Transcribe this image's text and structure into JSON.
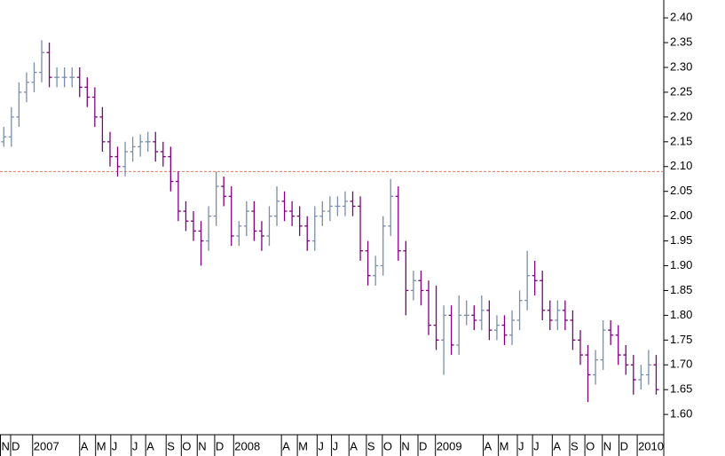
{
  "chart_data": {
    "type": "ohlc",
    "x": [
      0,
      1,
      2,
      3,
      4,
      5,
      6,
      7,
      8,
      9,
      10,
      11,
      12,
      13,
      14,
      15,
      16,
      17,
      18,
      19,
      20,
      21,
      22,
      23,
      24,
      25,
      26,
      27,
      28,
      29,
      30,
      31,
      32,
      33,
      34,
      35,
      36,
      37,
      38,
      39,
      40,
      41,
      42,
      43,
      44,
      45,
      46,
      47,
      48,
      49,
      50,
      51,
      52,
      53,
      54,
      55,
      56,
      57,
      58,
      59,
      60,
      61,
      62,
      63,
      64,
      65,
      66,
      67,
      68,
      69,
      70,
      71,
      72,
      73,
      74,
      75,
      76,
      77,
      78,
      79,
      80,
      81,
      82,
      83,
      84,
      85,
      86
    ],
    "open": [
      2.15,
      2.16,
      2.2,
      2.25,
      2.27,
      2.29,
      2.33,
      2.28,
      2.28,
      2.28,
      2.28,
      2.26,
      2.24,
      2.2,
      2.15,
      2.12,
      2.1,
      2.13,
      2.14,
      2.15,
      2.15,
      2.13,
      2.12,
      2.07,
      2.01,
      1.99,
      1.97,
      1.95,
      2.0,
      2.06,
      2.04,
      1.96,
      1.98,
      2.01,
      1.97,
      1.96,
      2.0,
      2.03,
      2.01,
      2.0,
      1.98,
      1.95,
      2.0,
      2.01,
      2.02,
      2.02,
      2.03,
      2.02,
      1.93,
      1.88,
      1.9,
      1.98,
      2.04,
      1.93,
      1.85,
      1.87,
      1.85,
      1.78,
      1.75,
      1.8,
      1.74,
      1.8,
      1.8,
      1.79,
      1.81,
      1.77,
      1.78,
      1.76,
      1.79,
      1.83,
      1.88,
      1.87,
      1.81,
      1.79,
      1.81,
      1.79,
      1.75,
      1.72,
      1.68,
      1.71,
      1.77,
      1.76,
      1.72,
      1.7,
      1.67,
      1.68,
      1.7
    ],
    "high": [
      2.18,
      2.22,
      2.27,
      2.29,
      2.31,
      2.355,
      2.35,
      2.3,
      2.3,
      2.3,
      2.3,
      2.28,
      2.26,
      2.22,
      2.17,
      2.14,
      2.15,
      2.16,
      2.165,
      2.17,
      2.17,
      2.15,
      2.14,
      2.09,
      2.03,
      2.01,
      1.99,
      2.02,
      2.09,
      2.08,
      2.06,
      1.99,
      2.03,
      2.03,
      1.99,
      2.02,
      2.06,
      2.05,
      2.03,
      2.02,
      2.0,
      2.02,
      2.03,
      2.04,
      2.04,
      2.05,
      2.05,
      2.04,
      1.95,
      1.92,
      2.0,
      2.075,
      2.06,
      1.95,
      1.89,
      1.89,
      1.87,
      1.86,
      1.82,
      1.82,
      1.84,
      1.83,
      1.82,
      1.84,
      1.83,
      1.8,
      1.8,
      1.81,
      1.85,
      1.93,
      1.91,
      1.89,
      1.83,
      1.83,
      1.83,
      1.81,
      1.77,
      1.74,
      1.73,
      1.79,
      1.79,
      1.78,
      1.74,
      1.72,
      1.7,
      1.73,
      1.72
    ],
    "low": [
      2.14,
      2.14,
      2.18,
      2.23,
      2.25,
      2.27,
      2.26,
      2.26,
      2.26,
      2.26,
      2.24,
      2.22,
      2.18,
      2.13,
      2.1,
      2.08,
      2.08,
      2.11,
      2.12,
      2.13,
      2.11,
      2.1,
      2.05,
      1.99,
      1.97,
      1.95,
      1.9,
      1.93,
      1.98,
      2.02,
      1.94,
      1.94,
      1.96,
      1.95,
      1.93,
      1.94,
      1.98,
      1.99,
      1.98,
      1.96,
      1.93,
      1.93,
      1.98,
      1.99,
      2.0,
      2.0,
      2.0,
      1.91,
      1.86,
      1.86,
      1.88,
      1.96,
      1.91,
      1.8,
      1.83,
      1.82,
      1.76,
      1.73,
      1.68,
      1.72,
      1.72,
      1.78,
      1.77,
      1.77,
      1.75,
      1.75,
      1.74,
      1.74,
      1.77,
      1.81,
      1.84,
      1.79,
      1.77,
      1.77,
      1.77,
      1.73,
      1.7,
      1.625,
      1.66,
      1.69,
      1.74,
      1.7,
      1.68,
      1.64,
      1.65,
      1.66,
      1.64
    ],
    "close": [
      2.16,
      2.2,
      2.25,
      2.27,
      2.29,
      2.33,
      2.28,
      2.28,
      2.28,
      2.28,
      2.26,
      2.24,
      2.2,
      2.15,
      2.12,
      2.1,
      2.13,
      2.14,
      2.15,
      2.15,
      2.13,
      2.12,
      2.07,
      2.01,
      1.99,
      1.97,
      1.95,
      2.0,
      2.06,
      2.04,
      1.96,
      1.98,
      2.01,
      1.97,
      1.96,
      2.0,
      2.03,
      2.01,
      2.0,
      1.98,
      1.95,
      2.0,
      2.01,
      2.02,
      2.02,
      2.03,
      2.02,
      1.93,
      1.88,
      1.9,
      1.98,
      2.04,
      1.93,
      1.85,
      1.87,
      1.85,
      1.78,
      1.75,
      1.8,
      1.74,
      1.8,
      1.8,
      1.79,
      1.81,
      1.77,
      1.78,
      1.76,
      1.79,
      1.83,
      1.88,
      1.87,
      1.81,
      1.79,
      1.81,
      1.79,
      1.75,
      1.72,
      1.68,
      1.71,
      1.77,
      1.76,
      1.72,
      1.7,
      1.67,
      1.68,
      1.7,
      1.65
    ],
    "up_color": "#7b8ea8",
    "down_color": "#800080",
    "reference_line": 2.09,
    "reference_color": "#e07a5f",
    "xlim": [
      -0.5,
      87
    ],
    "xticks": [
      {
        "value": -0.5,
        "label": "N"
      },
      {
        "value": 0.9,
        "label": "D"
      },
      {
        "value": 3.8,
        "label": "2007"
      },
      {
        "value": 10.0,
        "label": "A"
      },
      {
        "value": 12.1,
        "label": "M"
      },
      {
        "value": 14.1,
        "label": "J"
      },
      {
        "value": 16.8,
        "label": "J"
      },
      {
        "value": 18.7,
        "label": "A"
      },
      {
        "value": 21.4,
        "label": "S"
      },
      {
        "value": 23.4,
        "label": "O"
      },
      {
        "value": 25.5,
        "label": "N"
      },
      {
        "value": 27.8,
        "label": "D"
      },
      {
        "value": 30.3,
        "label": "2008"
      },
      {
        "value": 36.6,
        "label": "A"
      },
      {
        "value": 38.7,
        "label": "M"
      },
      {
        "value": 41.3,
        "label": "J"
      },
      {
        "value": 43.2,
        "label": "J"
      },
      {
        "value": 45.5,
        "label": "A"
      },
      {
        "value": 47.8,
        "label": "S"
      },
      {
        "value": 49.9,
        "label": "O"
      },
      {
        "value": 52.3,
        "label": "N"
      },
      {
        "value": 54.6,
        "label": "D"
      },
      {
        "value": 56.9,
        "label": "2009"
      },
      {
        "value": 63.2,
        "label": "A"
      },
      {
        "value": 65.2,
        "label": "M"
      },
      {
        "value": 67.7,
        "label": "J"
      },
      {
        "value": 69.7,
        "label": "J"
      },
      {
        "value": 72.3,
        "label": "A"
      },
      {
        "value": 74.6,
        "label": "S"
      },
      {
        "value": 76.6,
        "label": "O"
      },
      {
        "value": 78.9,
        "label": "N"
      },
      {
        "value": 81.1,
        "label": "D"
      },
      {
        "value": 83.5,
        "label": "2010"
      }
    ],
    "ylim": [
      1.56,
      2.436
    ],
    "yticks": [
      {
        "value": 1.6,
        "label": "1.60"
      },
      {
        "value": 1.65,
        "label": "1.65"
      },
      {
        "value": 1.7,
        "label": "1.70"
      },
      {
        "value": 1.75,
        "label": "1.75"
      },
      {
        "value": 1.8,
        "label": "1.80"
      },
      {
        "value": 1.85,
        "label": "1.85"
      },
      {
        "value": 1.9,
        "label": "1.90"
      },
      {
        "value": 1.95,
        "label": "1.95"
      },
      {
        "value": 2.0,
        "label": "2.00"
      },
      {
        "value": 2.05,
        "label": "2.05"
      },
      {
        "value": 2.1,
        "label": "2.10"
      },
      {
        "value": 2.15,
        "label": "2.15"
      },
      {
        "value": 2.2,
        "label": "2.20"
      },
      {
        "value": 2.25,
        "label": "2.25"
      },
      {
        "value": 2.3,
        "label": "2.30"
      },
      {
        "value": 2.35,
        "label": "2.35"
      },
      {
        "value": 2.4,
        "label": "2.40"
      }
    ]
  }
}
